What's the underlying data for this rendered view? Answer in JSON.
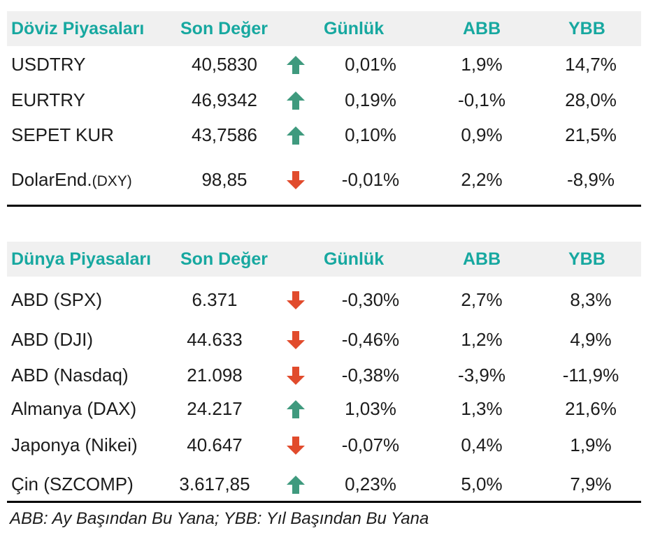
{
  "colors": {
    "header_text": "#17a8a0",
    "header_bg": "#f0f0f0",
    "arrow_up": "#3f9a7e",
    "arrow_down": "#e14b2c"
  },
  "fx": {
    "headers": {
      "title": "Döviz Piyasaları",
      "last": "Son Değer",
      "daily": "Günlük",
      "mtd": "ABB",
      "ytd": "YBB"
    },
    "rows": [
      {
        "name": "USDTRY",
        "last": "40,5830",
        "direction": "up",
        "arrow_icon": "arrow-up-icon",
        "daily": "0,01%",
        "mtd": "1,9%",
        "ytd": "14,7%"
      },
      {
        "name": "EURTRY",
        "last": "46,9342",
        "direction": "up",
        "arrow_icon": "arrow-up-icon",
        "daily": "0,19%",
        "mtd": "-0,1%",
        "ytd": "28,0%"
      },
      {
        "name": "SEPET KUR",
        "last": "43,7586",
        "direction": "up",
        "arrow_icon": "arrow-up-icon",
        "daily": "0,10%",
        "mtd": "0,9%",
        "ytd": "21,5%"
      },
      {
        "name": "DolarEnd.",
        "name_suffix": "(DXY)",
        "last": "98,85",
        "direction": "down",
        "arrow_icon": "arrow-down-icon",
        "daily": "-0,01%",
        "mtd": "2,2%",
        "ytd": "-8,9%"
      }
    ]
  },
  "world": {
    "headers": {
      "title": "Dünya Piyasaları",
      "last": "Son Değer",
      "daily": "Günlük",
      "mtd": "ABB",
      "ytd": "YBB"
    },
    "rows": [
      {
        "name": "ABD (SPX)",
        "last": "6.371",
        "direction": "down",
        "arrow_icon": "arrow-down-icon",
        "daily": "-0,30%",
        "mtd": "2,7%",
        "ytd": "8,3%"
      },
      {
        "name": "ABD (DJI)",
        "last": "44.633",
        "direction": "down",
        "arrow_icon": "arrow-down-icon",
        "daily": "-0,46%",
        "mtd": "1,2%",
        "ytd": "4,9%"
      },
      {
        "name": "ABD (Nasdaq)",
        "last": "21.098",
        "direction": "down",
        "arrow_icon": "arrow-down-icon",
        "daily": "-0,38%",
        "mtd": "-3,9%",
        "ytd": "-11,9%"
      },
      {
        "name": "Almanya (DAX)",
        "last": "24.217",
        "direction": "up",
        "arrow_icon": "arrow-up-icon",
        "daily": "1,03%",
        "mtd": "1,3%",
        "ytd": "21,6%"
      },
      {
        "name": "Japonya (Nikei)",
        "last": "40.647",
        "direction": "down",
        "arrow_icon": "arrow-down-icon",
        "daily": "-0,07%",
        "mtd": "0,4%",
        "ytd": "1,9%"
      },
      {
        "name": "Çin (SZCOMP)",
        "last": "3.617,85",
        "direction": "up",
        "arrow_icon": "arrow-up-icon",
        "daily": "0,23%",
        "mtd": "5,0%",
        "ytd": "7,9%"
      }
    ]
  },
  "footnote": "ABB: Ay Başından Bu Yana; YBB: Yıl Başından Bu Yana"
}
